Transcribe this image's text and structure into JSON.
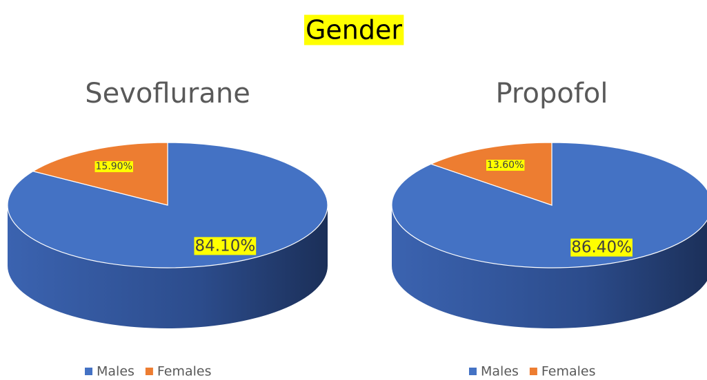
{
  "title": "Gender",
  "chart_data": [
    {
      "type": "pie",
      "title": "Sevoflurane",
      "categories": [
        "Males",
        "Females"
      ],
      "values": [
        84.1,
        15.9
      ],
      "value_labels": [
        "84.10%",
        "15.90%"
      ],
      "colors": [
        "#4472c4",
        "#ed7d31"
      ],
      "legend": "bottom"
    },
    {
      "type": "pie",
      "title": "Propofol",
      "categories": [
        "Males",
        "Females"
      ],
      "values": [
        86.4,
        13.6
      ],
      "value_labels": [
        "86.40%",
        "13.60%"
      ],
      "colors": [
        "#4472c4",
        "#ed7d31"
      ],
      "legend": "bottom"
    }
  ]
}
